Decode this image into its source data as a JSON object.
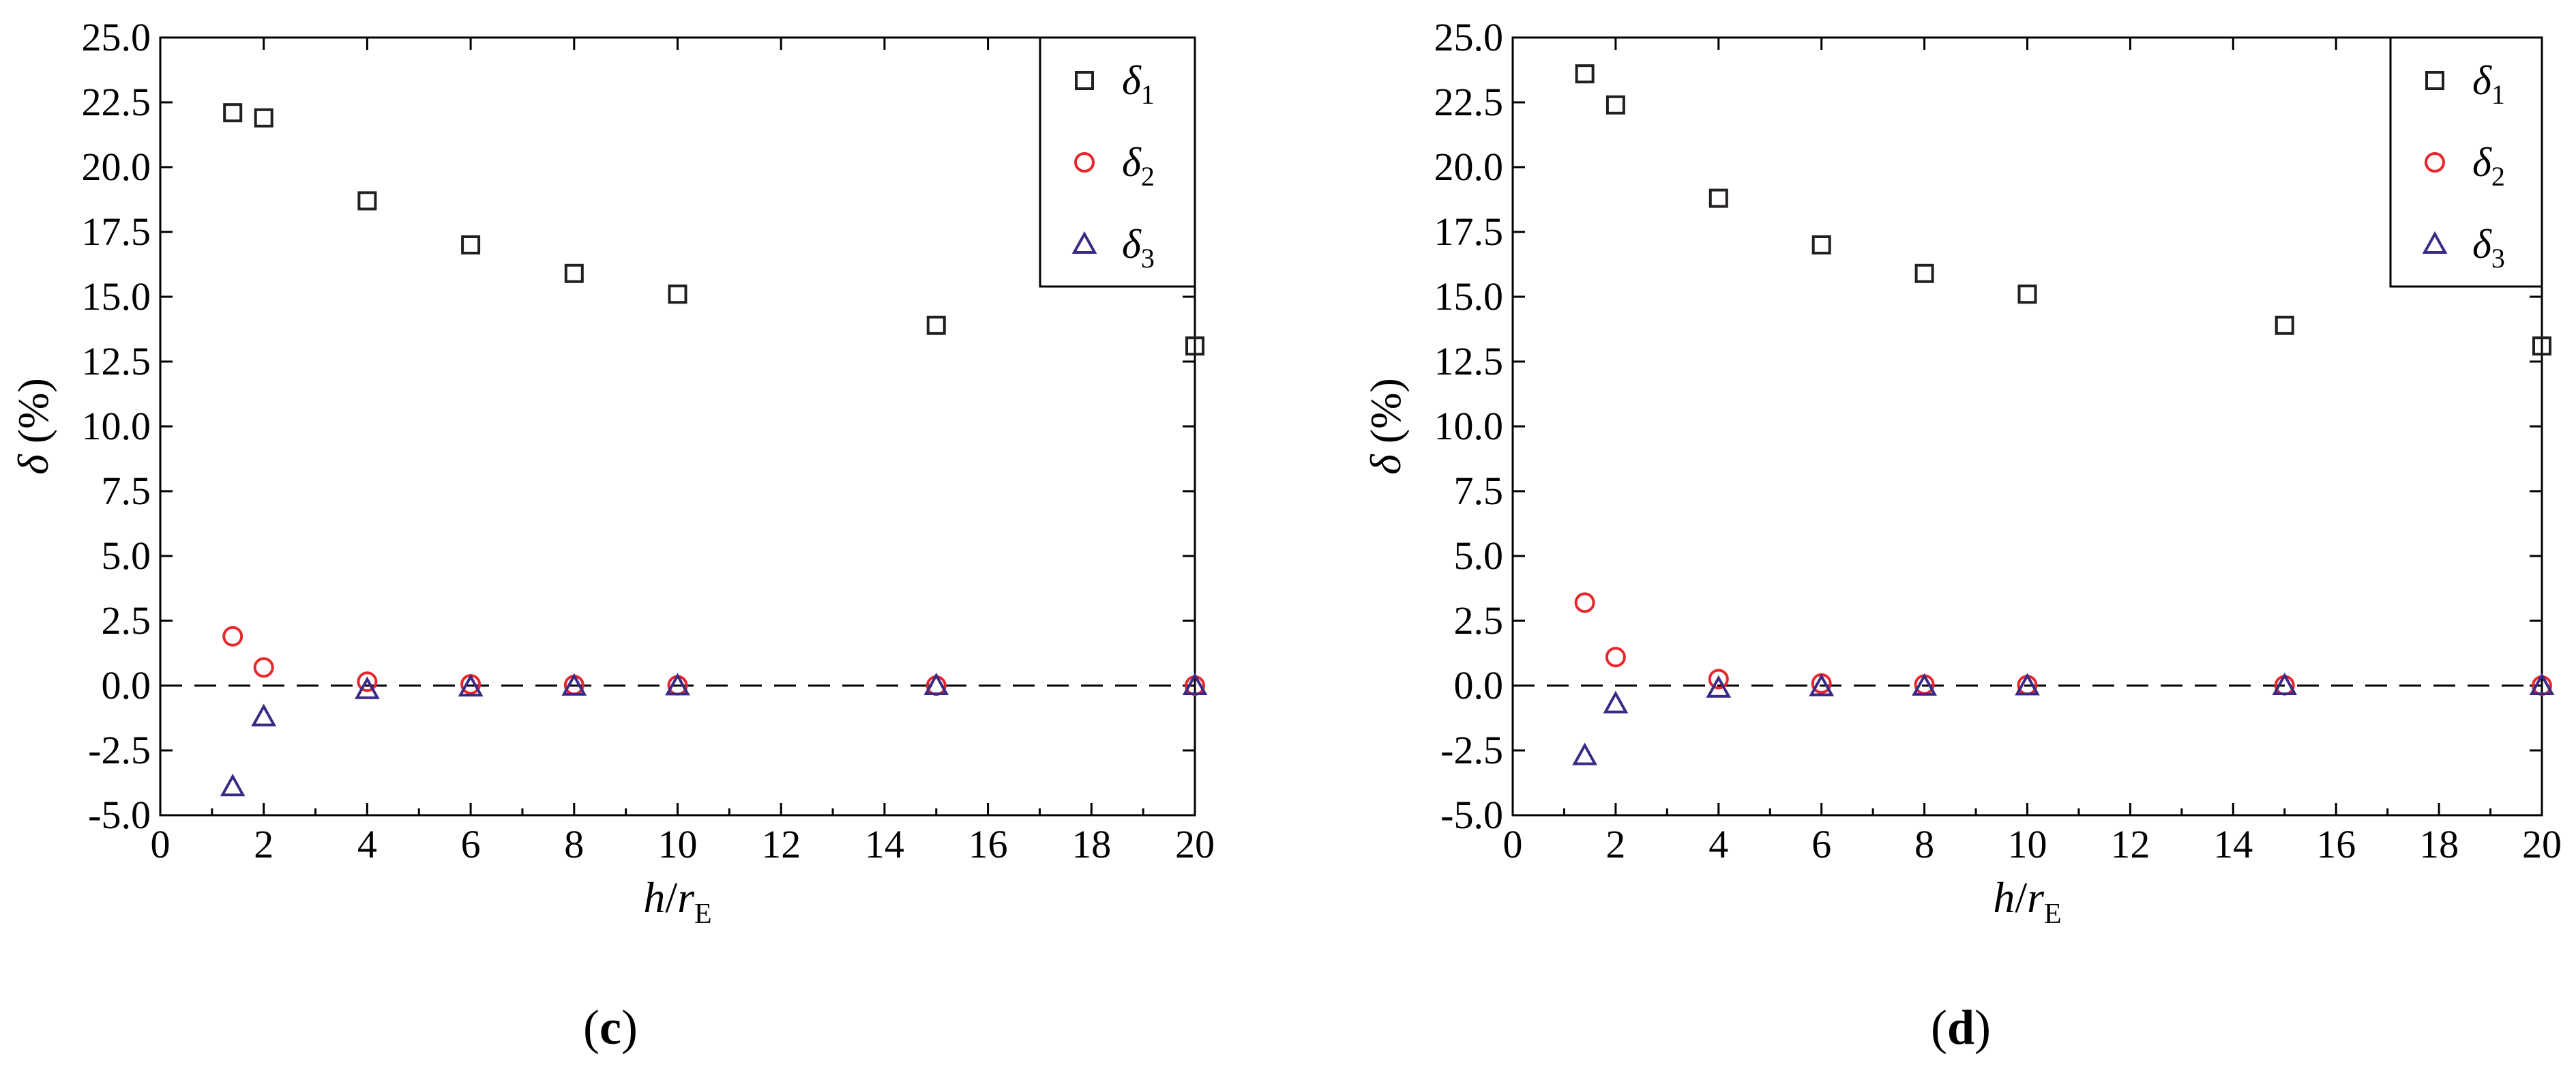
{
  "chart_data": [
    {
      "type": "scatter",
      "panel_label": "c",
      "xlim": [
        0,
        20
      ],
      "ylim": [
        -5,
        25
      ],
      "x_ticks": [
        "0",
        "2",
        "4",
        "6",
        "8",
        "10",
        "12",
        "14",
        "16",
        "18",
        "20"
      ],
      "y_ticks": [
        "-5.0",
        "-2.5",
        "0.0",
        "2.5",
        "5.0",
        "7.5",
        "10.0",
        "12.5",
        "15.0",
        "17.5",
        "20.0",
        "22.5",
        "25.0"
      ],
      "xlabel": {
        "main": "h",
        "slash": "/",
        "var": "r",
        "sub": "E"
      },
      "ylabel": {
        "var": "δ",
        "unit": " (%)"
      },
      "reference_line": {
        "y": 0,
        "style": "dashed"
      },
      "legend_position": "top-right",
      "grid": false,
      "series": [
        {
          "symbol": "δ",
          "sub": "1",
          "marker": "square",
          "color": "#231f20",
          "x": [
            1.4,
            2,
            4,
            6,
            8,
            10,
            15,
            20
          ],
          "y": [
            22.1,
            21.9,
            18.7,
            17.0,
            15.9,
            15.1,
            13.9,
            13.1
          ]
        },
        {
          "symbol": "δ",
          "sub": "2",
          "marker": "circle",
          "color": "#e8262b",
          "x": [
            1.4,
            2,
            4,
            6,
            8,
            10,
            15,
            20
          ],
          "y": [
            1.9,
            0.7,
            0.15,
            0.05,
            0.02,
            0.01,
            0.0,
            0.0
          ]
        },
        {
          "symbol": "δ",
          "sub": "3",
          "marker": "triangle",
          "color": "#3b2a85",
          "x": [
            1.4,
            2,
            4,
            6,
            8,
            10,
            15,
            20
          ],
          "y": [
            -3.9,
            -1.2,
            -0.15,
            -0.05,
            -0.02,
            -0.01,
            0.0,
            0.0
          ]
        }
      ]
    },
    {
      "type": "scatter",
      "panel_label": "d",
      "xlim": [
        0,
        20
      ],
      "ylim": [
        -5,
        25
      ],
      "x_ticks": [
        "0",
        "2",
        "4",
        "6",
        "8",
        "10",
        "12",
        "14",
        "16",
        "18",
        "20"
      ],
      "y_ticks": [
        "-5.0",
        "-2.5",
        "0.0",
        "2.5",
        "5.0",
        "7.5",
        "10.0",
        "12.5",
        "15.0",
        "17.5",
        "20.0",
        "22.5",
        "25.0"
      ],
      "xlabel": {
        "main": "h",
        "slash": "/",
        "var": "r",
        "sub": "E"
      },
      "ylabel": {
        "var": "δ",
        "unit": " (%)"
      },
      "reference_line": {
        "y": 0,
        "style": "dashed"
      },
      "legend_position": "top-right",
      "grid": false,
      "series": [
        {
          "symbol": "δ",
          "sub": "1",
          "marker": "square",
          "color": "#231f20",
          "x": [
            1.4,
            2,
            4,
            6,
            8,
            10,
            15,
            20
          ],
          "y": [
            23.6,
            22.4,
            18.8,
            17.0,
            15.9,
            15.1,
            13.9,
            13.1
          ]
        },
        {
          "symbol": "δ",
          "sub": "2",
          "marker": "circle",
          "color": "#e8262b",
          "x": [
            1.4,
            2,
            4,
            6,
            8,
            10,
            15,
            20
          ],
          "y": [
            3.2,
            1.1,
            0.25,
            0.08,
            0.04,
            0.02,
            0.01,
            0.0
          ]
        },
        {
          "symbol": "δ",
          "sub": "3",
          "marker": "triangle",
          "color": "#3b2a85",
          "x": [
            1.4,
            2,
            4,
            6,
            8,
            10,
            15,
            20
          ],
          "y": [
            -2.7,
            -0.7,
            -0.1,
            -0.04,
            -0.02,
            -0.01,
            0.0,
            0.0
          ]
        }
      ]
    }
  ]
}
